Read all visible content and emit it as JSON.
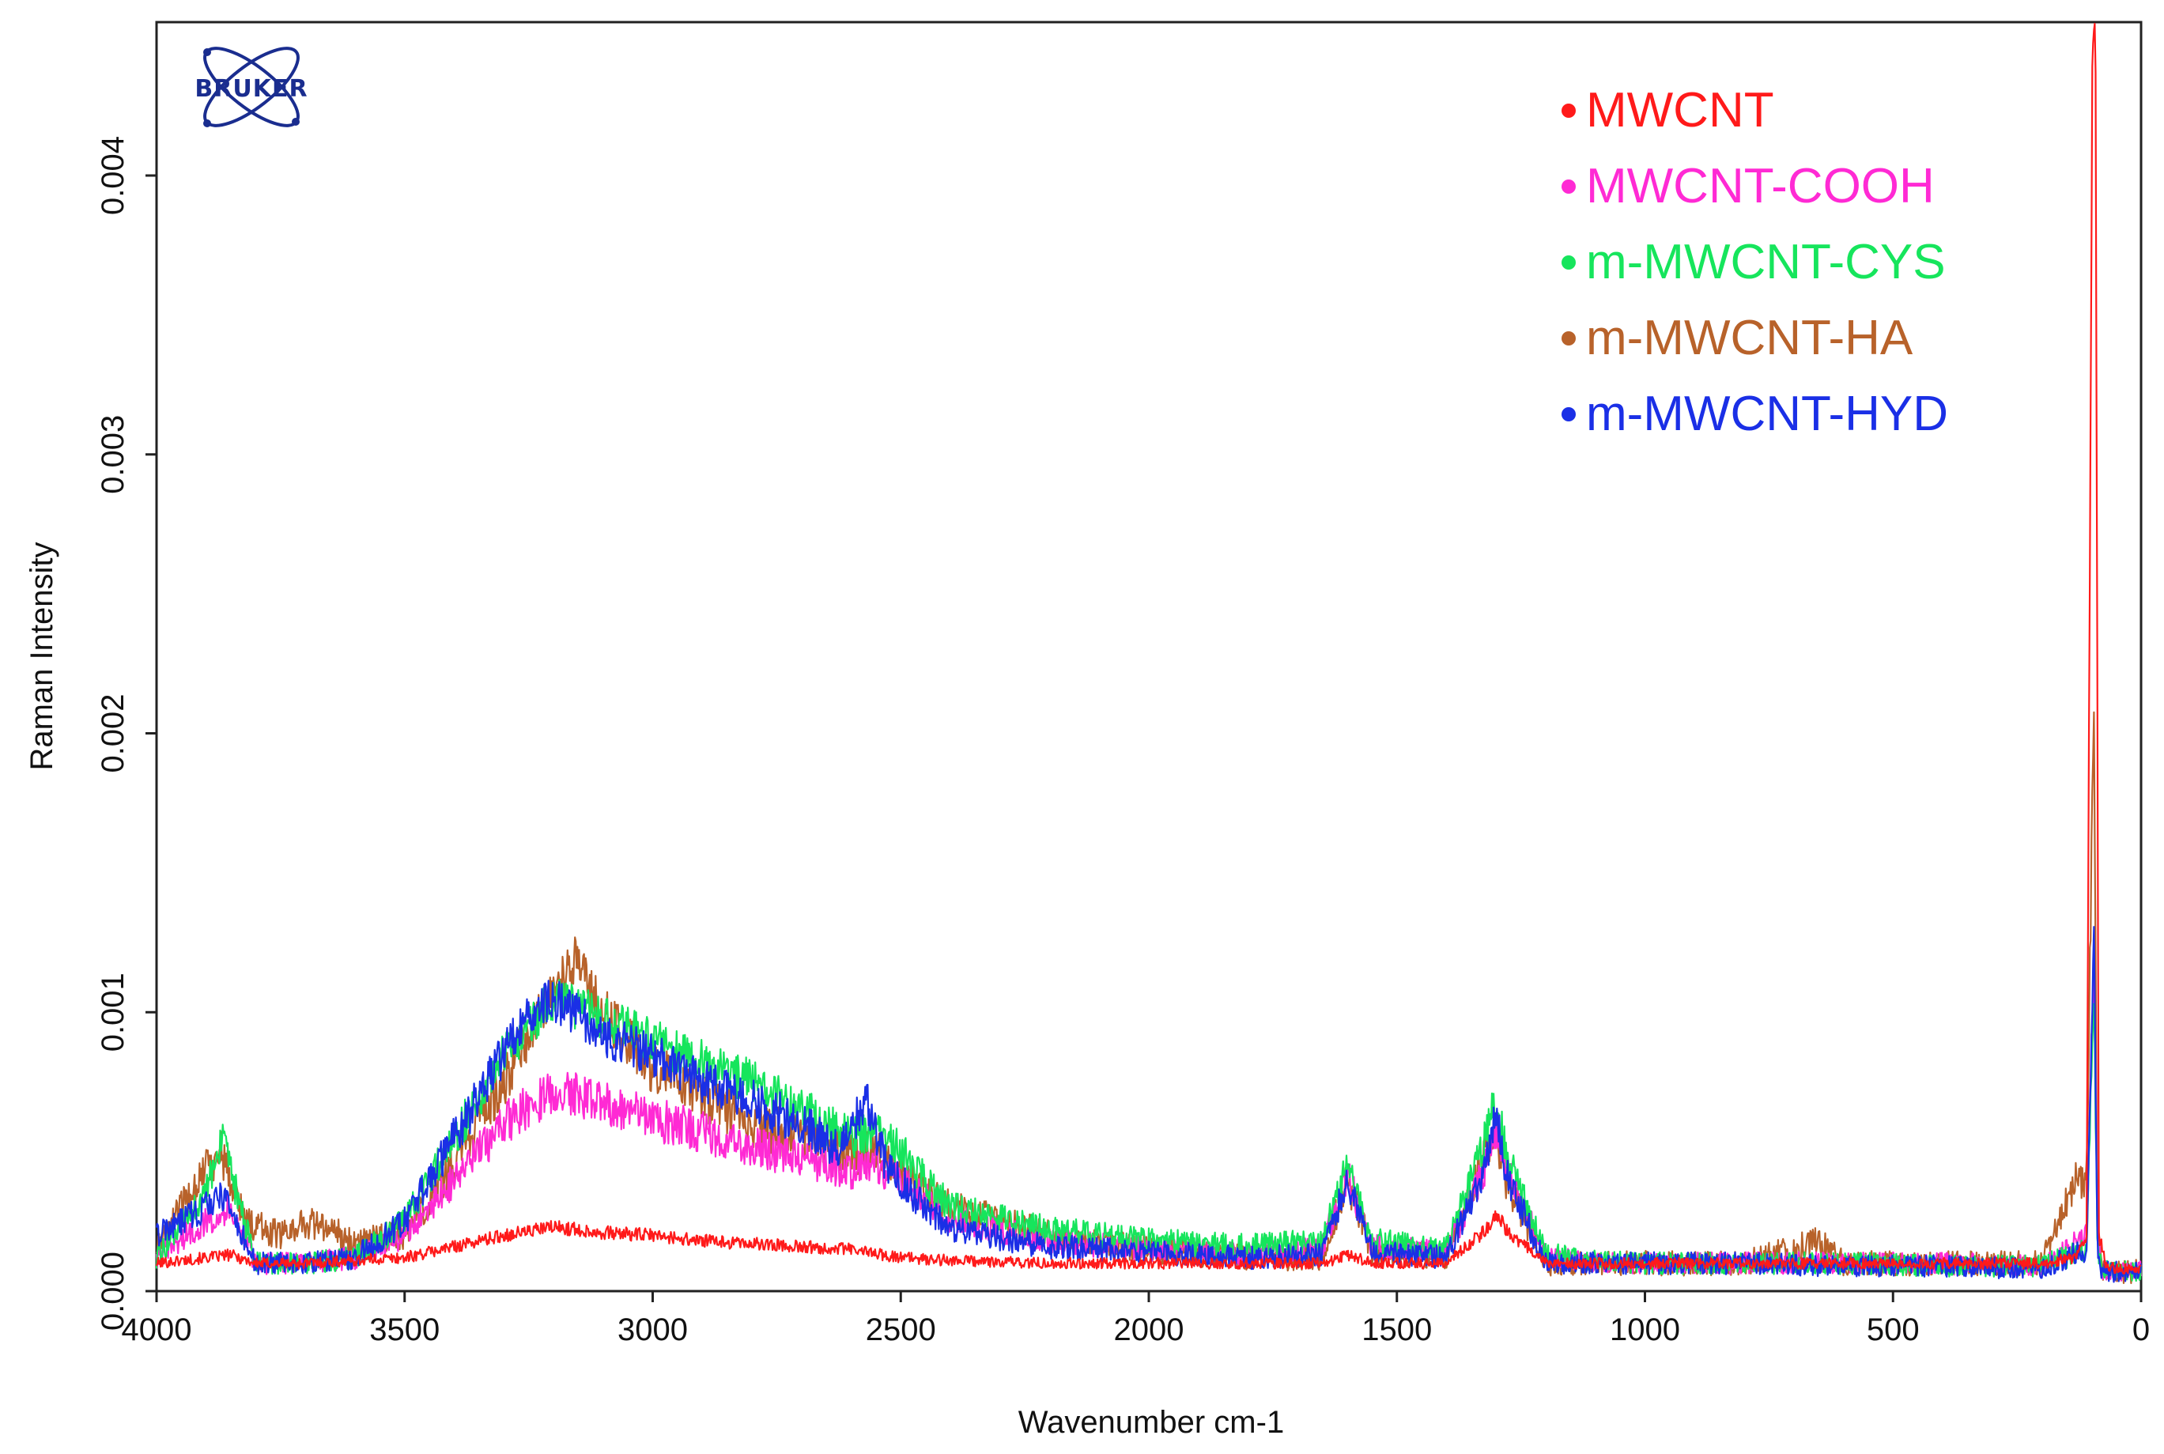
{
  "logo": {
    "text": "BRUKER",
    "color": "#1a2d8f"
  },
  "chart_data": {
    "type": "line",
    "xlabel": "Wavenumber cm-1",
    "ylabel": "Raman Intensity",
    "xlim": [
      4000,
      0
    ],
    "ylim": [
      0,
      0.00455
    ],
    "x_ticks": [
      4000,
      3500,
      3000,
      2500,
      2000,
      1500,
      1000,
      500,
      0
    ],
    "x_tick_labels": [
      "4000",
      "3500",
      "3000",
      "2500",
      "2000",
      "1500",
      "1000",
      "500",
      "0"
    ],
    "y_ticks": [
      0,
      0.001,
      0.002,
      0.003,
      0.004
    ],
    "y_tick_labels": [
      "0.000",
      "0.001",
      "0.002",
      "0.003",
      "0.004"
    ],
    "grid": false,
    "legend_position": "top-right",
    "series": [
      {
        "name": "MWCNT",
        "color": "#ff1a1a",
        "x": [
          4000,
          3900,
          3850,
          3800,
          3700,
          3600,
          3500,
          3400,
          3300,
          3200,
          3100,
          3000,
          2900,
          2800,
          2700,
          2600,
          2500,
          2400,
          2200,
          2000,
          1800,
          1650,
          1600,
          1550,
          1400,
          1320,
          1300,
          1280,
          1200,
          1000,
          800,
          600,
          400,
          200,
          130,
          110,
          98,
          92,
          85,
          70,
          40,
          0
        ],
        "y": [
          0.0001,
          0.00012,
          0.00013,
          0.0001,
          0.0001,
          0.00011,
          0.00012,
          0.00016,
          0.0002,
          0.00023,
          0.00021,
          0.0002,
          0.00018,
          0.00017,
          0.00016,
          0.00015,
          0.00012,
          0.00011,
          0.0001,
          0.0001,
          0.0001,
          0.0001,
          0.00013,
          0.0001,
          0.0001,
          0.00022,
          0.00028,
          0.00022,
          0.0001,
          0.0001,
          0.0001,
          0.0001,
          0.0001,
          0.0001,
          0.00012,
          0.0002,
          0.0045,
          0.00455,
          0.0002,
          9e-05,
          8e-05,
          8e-05
        ],
        "noise": 4e-05
      },
      {
        "name": "MWCNT-COOH",
        "color": "#ff2ad4",
        "x": [
          4000,
          3900,
          3850,
          3800,
          3700,
          3600,
          3500,
          3400,
          3300,
          3200,
          3100,
          3000,
          2900,
          2800,
          2700,
          2600,
          2550,
          2500,
          2400,
          2200,
          2000,
          1800,
          1650,
          1600,
          1550,
          1400,
          1320,
          1300,
          1280,
          1200,
          1000,
          800,
          600,
          400,
          200,
          110,
          95,
          88,
          80,
          40,
          0
        ],
        "y": [
          0.00012,
          0.00025,
          0.0003,
          0.0001,
          0.0001,
          0.00012,
          0.0002,
          0.0004,
          0.0006,
          0.00072,
          0.00068,
          0.00062,
          0.00057,
          0.00052,
          0.00047,
          0.00043,
          0.00045,
          0.0004,
          0.00026,
          0.00018,
          0.00015,
          0.00013,
          0.00016,
          0.00042,
          0.00016,
          0.00014,
          0.00045,
          0.00058,
          0.00045,
          0.00012,
          0.0001,
          0.0001,
          0.0001,
          0.0001,
          9e-05,
          0.0002,
          0.0012,
          0.0002,
          8e-05,
          7e-05,
          7e-05
        ],
        "noise": 8e-05
      },
      {
        "name": "m-MWCNT-CYS",
        "color": "#16e55c",
        "x": [
          4000,
          3900,
          3870,
          3800,
          3700,
          3600,
          3500,
          3400,
          3300,
          3200,
          3100,
          3000,
          2900,
          2800,
          2700,
          2600,
          2550,
          2500,
          2400,
          2200,
          2000,
          1800,
          1650,
          1600,
          1550,
          1400,
          1320,
          1300,
          1280,
          1200,
          1000,
          800,
          600,
          400,
          200,
          110,
          95,
          88,
          80,
          40,
          0
        ],
        "y": [
          0.00012,
          0.00035,
          0.00055,
          0.0001,
          0.0001,
          0.00012,
          0.00025,
          0.00055,
          0.00085,
          0.00105,
          0.00098,
          0.0009,
          0.00082,
          0.00075,
          0.00065,
          0.00055,
          0.00058,
          0.0005,
          0.0003,
          0.00022,
          0.00018,
          0.00016,
          0.00018,
          0.00045,
          0.00018,
          0.00016,
          0.00055,
          0.0007,
          0.0005,
          0.00013,
          0.0001,
          0.0001,
          0.0001,
          9e-05,
          9e-05,
          0.00015,
          0.0011,
          0.00016,
          8e-05,
          7e-05,
          7e-05
        ],
        "noise": 8e-05
      },
      {
        "name": "m-MWCNT-HA",
        "color": "#b8622a",
        "x": [
          4000,
          3900,
          3870,
          3820,
          3750,
          3700,
          3650,
          3600,
          3500,
          3400,
          3300,
          3200,
          3150,
          3100,
          3000,
          2900,
          2800,
          2700,
          2600,
          2550,
          2500,
          2400,
          2200,
          2000,
          1800,
          1650,
          1600,
          1550,
          1400,
          1320,
          1300,
          1280,
          1200,
          1000,
          800,
          650,
          600,
          400,
          200,
          130,
          110,
          95,
          88,
          80,
          40,
          0
        ],
        "y": [
          0.00015,
          0.00045,
          0.0005,
          0.00025,
          0.0002,
          0.00025,
          0.00022,
          0.00018,
          0.0002,
          0.00045,
          0.00075,
          0.0011,
          0.0012,
          0.001,
          0.0008,
          0.0007,
          0.0006,
          0.00055,
          0.0005,
          0.0005,
          0.00042,
          0.0003,
          0.0002,
          0.00015,
          0.00012,
          0.00012,
          0.0004,
          0.00014,
          0.00012,
          0.0005,
          0.00058,
          0.0004,
          0.0001,
          0.0001,
          0.0001,
          0.00018,
          0.0001,
          0.0001,
          0.0001,
          0.0004,
          0.0004,
          0.0021,
          0.0003,
          8e-05,
          7e-05,
          7e-05
        ],
        "noise": 9e-05
      },
      {
        "name": "m-MWCNT-HYD",
        "color": "#1a2fe6",
        "x": [
          4000,
          3900,
          3870,
          3800,
          3700,
          3600,
          3500,
          3400,
          3300,
          3250,
          3200,
          3100,
          3000,
          2900,
          2800,
          2700,
          2620,
          2570,
          2530,
          2450,
          2400,
          2200,
          2000,
          1800,
          1650,
          1600,
          1550,
          1400,
          1320,
          1300,
          1280,
          1200,
          1000,
          800,
          600,
          400,
          200,
          110,
          95,
          88,
          80,
          40,
          0
        ],
        "y": [
          0.0002,
          0.0003,
          0.00035,
          0.0001,
          0.0001,
          0.00012,
          0.00025,
          0.00055,
          0.00085,
          0.001,
          0.00105,
          0.00092,
          0.00085,
          0.00075,
          0.00068,
          0.0006,
          0.0005,
          0.0007,
          0.00045,
          0.0003,
          0.00022,
          0.00016,
          0.00014,
          0.00012,
          0.00013,
          0.0004,
          0.00014,
          0.00012,
          0.00045,
          0.00065,
          0.00042,
          0.0001,
          0.0001,
          0.0001,
          9e-05,
          9e-05,
          8e-05,
          0.00015,
          0.00128,
          0.00015,
          7e-05,
          7e-05,
          7e-05
        ],
        "noise": 8e-05
      }
    ]
  }
}
